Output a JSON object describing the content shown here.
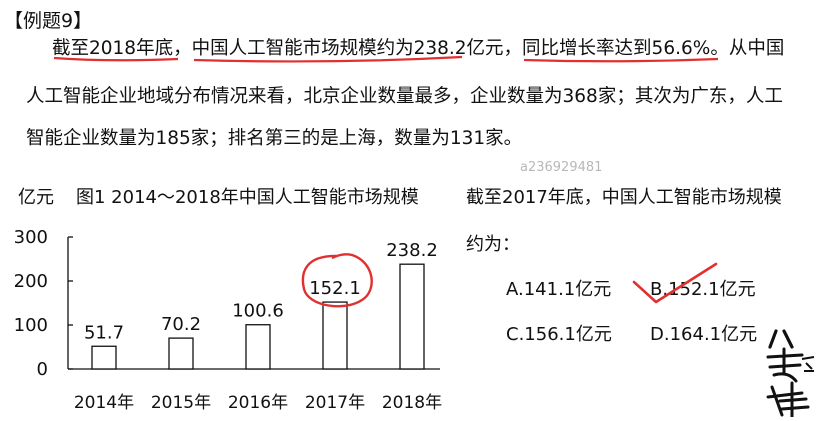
{
  "title": "【例题9】",
  "paragraph": {
    "line1": "截至2018年底，中国人工智能市场规模约为238.2亿元，同比增长率达到56.6%。从中国",
    "line2": "人工智能企业地域分布情况来看，北京企业数量最多，企业数量为368家；其次为广东，人工",
    "line3": "智能企业数量为185家；排名第三的是上海，数量为131家。"
  },
  "watermark": "a236929481",
  "question": {
    "stem_line1": "截至2017年底，中国人工智能市场规模",
    "stem_line2": "约为：",
    "options": [
      {
        "label": "A.141.1亿元"
      },
      {
        "label": "B.152.1亿元"
      },
      {
        "label": "C.156.1亿元"
      },
      {
        "label": "D.164.1亿元"
      }
    ]
  },
  "colors": {
    "annotation": "#e0302f",
    "bar_stroke": "#111111",
    "bar_fill": "#ffffff"
  },
  "logo_icon": "brand-calligraphy-logo",
  "chart_data": {
    "type": "bar",
    "title": "图1 2014～2018年中国人工智能市场规模",
    "ylabel": "亿元",
    "xlabel": "",
    "categories": [
      "2014年",
      "2015年",
      "2016年",
      "2017年",
      "2018年"
    ],
    "values": [
      51.7,
      70.2,
      100.6,
      152.1,
      238.2
    ],
    "value_labels": [
      "51.7",
      "70.2",
      "100.6",
      "152.1",
      "238.2"
    ],
    "ylim": [
      0,
      300
    ],
    "yticks": [
      "0",
      "100",
      "200",
      "300"
    ],
    "ytick_values": [
      0,
      100,
      200,
      300
    ],
    "grid": false,
    "legend": "none"
  }
}
